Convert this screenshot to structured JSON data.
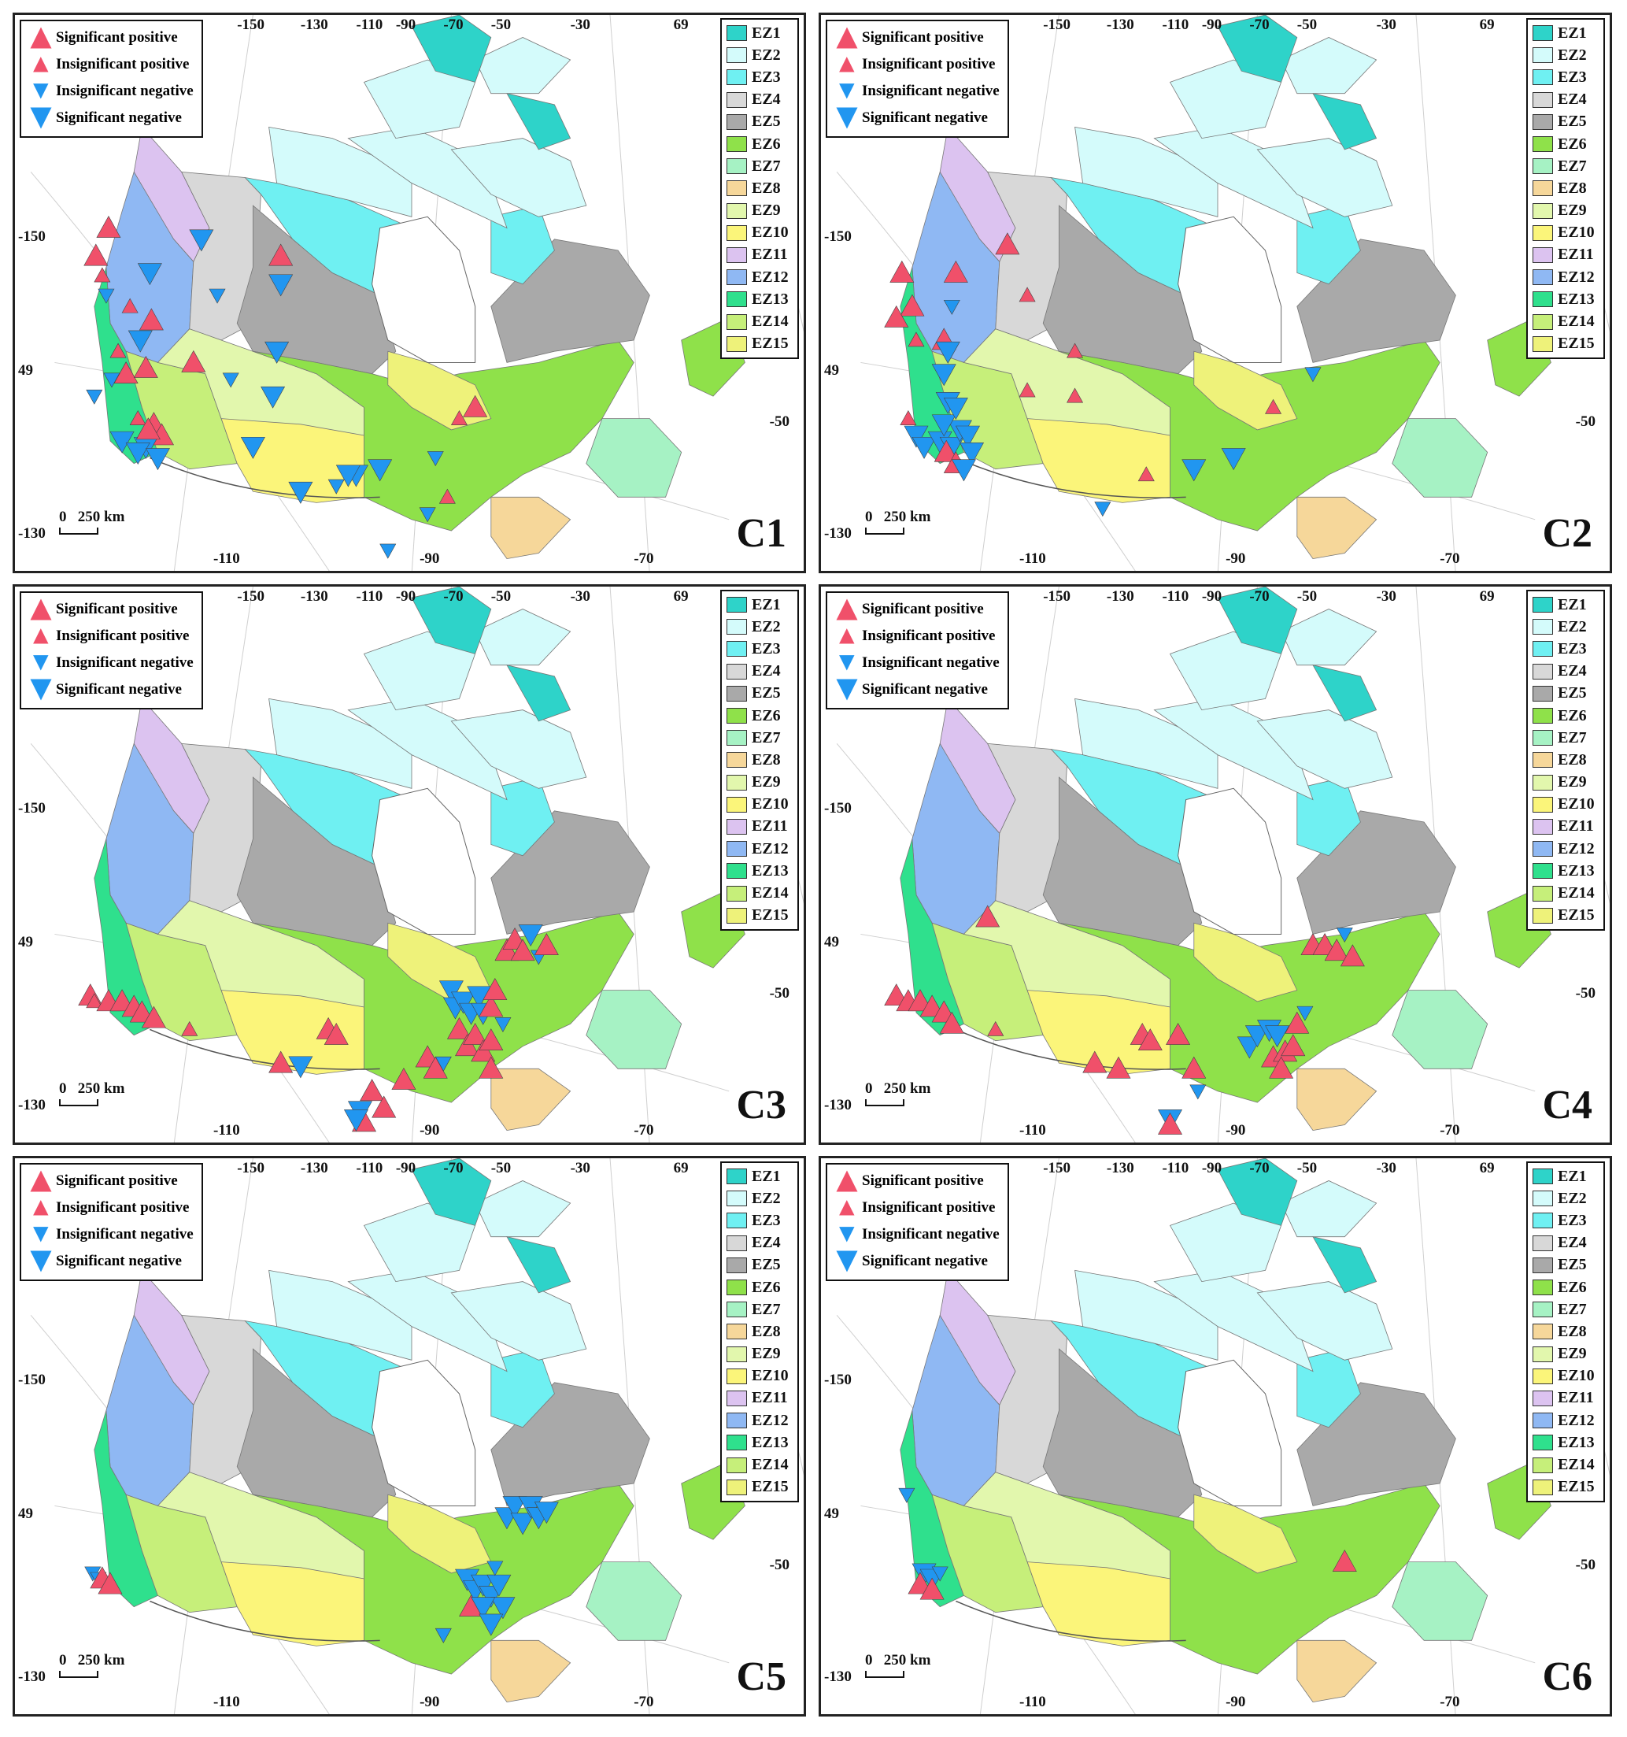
{
  "legend_trend": [
    {
      "kind": "sig-pos",
      "label": "Significant positive"
    },
    {
      "kind": "ins-pos",
      "label": "Insignificant positive"
    },
    {
      "kind": "ins-neg",
      "label": "Insignificant negative"
    },
    {
      "kind": "sig-neg",
      "label": "Significant negative"
    }
  ],
  "ecozones": [
    {
      "label": "EZ1",
      "color": "#2ed3c9"
    },
    {
      "label": "EZ2",
      "color": "#d4fbfb"
    },
    {
      "label": "EZ3",
      "color": "#6ff0f2"
    },
    {
      "label": "EZ4",
      "color": "#d8d8d8"
    },
    {
      "label": "EZ5",
      "color": "#a9a9a9"
    },
    {
      "label": "EZ6",
      "color": "#8fe14a"
    },
    {
      "label": "EZ7",
      "color": "#a6f2c4"
    },
    {
      "label": "EZ8",
      "color": "#f6d79a"
    },
    {
      "label": "EZ9",
      "color": "#e2f7ad"
    },
    {
      "label": "EZ10",
      "color": "#fbf57a"
    },
    {
      "label": "EZ11",
      "color": "#dcc3f0"
    },
    {
      "label": "EZ12",
      "color": "#8fb8f3"
    },
    {
      "label": "EZ13",
      "color": "#2fe08d"
    },
    {
      "label": "EZ14",
      "color": "#c6ef7a"
    },
    {
      "label": "EZ15",
      "color": "#eef27a"
    }
  ],
  "colors": {
    "positive": "#f0506a",
    "negative": "#2196f0"
  },
  "coord_labels": {
    "top": [
      "-150",
      "-130",
      "-110",
      "-90",
      "-70",
      "-50",
      "-30",
      "69"
    ],
    "left": [
      "-150",
      "49",
      "-130"
    ],
    "right": [
      "-50"
    ],
    "bottom": [
      "-110",
      "-90",
      "-70"
    ]
  },
  "scale_label": "0   250 km",
  "panels": [
    {
      "label": "C1",
      "stations": [
        [
          "sp",
          0.118,
          0.38
        ],
        [
          "sp",
          0.102,
          0.43
        ],
        [
          "ip",
          0.11,
          0.465
        ],
        [
          "in",
          0.115,
          0.5
        ],
        [
          "sn",
          0.17,
          0.46
        ],
        [
          "ip",
          0.145,
          0.52
        ],
        [
          "sp",
          0.172,
          0.545
        ],
        [
          "sn",
          0.158,
          0.58
        ],
        [
          "ip",
          0.13,
          0.6
        ],
        [
          "sp",
          0.14,
          0.64
        ],
        [
          "sp",
          0.165,
          0.63
        ],
        [
          "sp",
          0.225,
          0.62
        ],
        [
          "in",
          0.122,
          0.65
        ],
        [
          "in",
          0.1,
          0.68
        ],
        [
          "ip",
          0.155,
          0.72
        ],
        [
          "sp",
          0.175,
          0.73
        ],
        [
          "sp",
          0.185,
          0.75
        ],
        [
          "sn",
          0.135,
          0.76
        ],
        [
          "sn",
          0.165,
          0.77
        ],
        [
          "sn",
          0.155,
          0.78
        ],
        [
          "sn",
          0.18,
          0.79
        ],
        [
          "sp",
          0.168,
          0.74
        ],
        [
          "sn",
          0.235,
          0.4
        ],
        [
          "in",
          0.255,
          0.5
        ],
        [
          "sp",
          0.335,
          0.43
        ],
        [
          "sn",
          0.335,
          0.48
        ],
        [
          "sn",
          0.33,
          0.6
        ],
        [
          "sn",
          0.325,
          0.68
        ],
        [
          "in",
          0.272,
          0.65
        ],
        [
          "sn",
          0.3,
          0.77
        ],
        [
          "sn",
          0.36,
          0.85
        ],
        [
          "in",
          0.405,
          0.84
        ],
        [
          "sn",
          0.43,
          0.82
        ],
        [
          "sn",
          0.46,
          0.81
        ],
        [
          "in",
          0.53,
          0.79
        ],
        [
          "sp",
          0.58,
          0.7
        ],
        [
          "ip",
          0.56,
          0.72
        ],
        [
          "in",
          0.52,
          0.89
        ],
        [
          "ip",
          0.545,
          0.86
        ],
        [
          "in",
          0.47,
          0.955
        ],
        [
          "sn",
          0.42,
          0.82
        ]
      ]
    },
    {
      "label": "C2",
      "stations": [
        [
          "sp",
          0.102,
          0.46
        ],
        [
          "sp",
          0.115,
          0.52
        ],
        [
          "sp",
          0.095,
          0.54
        ],
        [
          "sp",
          0.17,
          0.46
        ],
        [
          "in",
          0.165,
          0.52
        ],
        [
          "sp",
          0.155,
          0.58
        ],
        [
          "ip",
          0.12,
          0.58
        ],
        [
          "sn",
          0.16,
          0.6
        ],
        [
          "sn",
          0.155,
          0.64
        ],
        [
          "sn",
          0.16,
          0.69
        ],
        [
          "ip",
          0.11,
          0.72
        ],
        [
          "sn",
          0.12,
          0.75
        ],
        [
          "sn",
          0.13,
          0.77
        ],
        [
          "sn",
          0.15,
          0.76
        ],
        [
          "sn",
          0.165,
          0.77
        ],
        [
          "sn",
          0.175,
          0.74
        ],
        [
          "sn",
          0.185,
          0.75
        ],
        [
          "sn",
          0.19,
          0.78
        ],
        [
          "sp",
          0.158,
          0.78
        ],
        [
          "sp",
          0.17,
          0.8
        ],
        [
          "sn",
          0.18,
          0.81
        ],
        [
          "sn",
          0.155,
          0.73
        ],
        [
          "sn",
          0.17,
          0.7
        ],
        [
          "sp",
          0.235,
          0.41
        ],
        [
          "ip",
          0.26,
          0.5
        ],
        [
          "ip",
          0.32,
          0.6
        ],
        [
          "ip",
          0.26,
          0.67
        ],
        [
          "ip",
          0.32,
          0.68
        ],
        [
          "ip",
          0.41,
          0.82
        ],
        [
          "in",
          0.355,
          0.88
        ],
        [
          "sn",
          0.47,
          0.81
        ],
        [
          "sn",
          0.52,
          0.79
        ],
        [
          "ip",
          0.57,
          0.7
        ],
        [
          "in",
          0.62,
          0.64
        ]
      ]
    },
    {
      "label": "C3",
      "stations": [
        [
          "sp",
          0.095,
          0.73
        ],
        [
          "ip",
          0.1,
          0.74
        ],
        [
          "sp",
          0.118,
          0.74
        ],
        [
          "sp",
          0.135,
          0.74
        ],
        [
          "sp",
          0.15,
          0.75
        ],
        [
          "sp",
          0.16,
          0.76
        ],
        [
          "sp",
          0.175,
          0.77
        ],
        [
          "ip",
          0.22,
          0.79
        ],
        [
          "sp",
          0.335,
          0.85
        ],
        [
          "sn",
          0.36,
          0.855
        ],
        [
          "sp",
          0.395,
          0.79
        ],
        [
          "sp",
          0.405,
          0.8
        ],
        [
          "sp",
          0.45,
          0.9
        ],
        [
          "sp",
          0.465,
          0.93
        ],
        [
          "sn",
          0.435,
          0.935
        ],
        [
          "sp",
          0.44,
          0.955
        ],
        [
          "sn",
          0.43,
          0.95
        ],
        [
          "sp",
          0.49,
          0.88
        ],
        [
          "sp",
          0.52,
          0.84
        ],
        [
          "sp",
          0.53,
          0.86
        ],
        [
          "sn",
          0.55,
          0.72
        ],
        [
          "sn",
          0.555,
          0.75
        ],
        [
          "sn",
          0.565,
          0.74
        ],
        [
          "sn",
          0.575,
          0.76
        ],
        [
          "sn",
          0.585,
          0.73
        ],
        [
          "sn",
          0.59,
          0.76
        ],
        [
          "sp",
          0.6,
          0.75
        ],
        [
          "sp",
          0.56,
          0.79
        ],
        [
          "sp",
          0.57,
          0.82
        ],
        [
          "sp",
          0.58,
          0.8
        ],
        [
          "sp",
          0.59,
          0.83
        ],
        [
          "sp",
          0.6,
          0.81
        ],
        [
          "sp",
          0.605,
          0.72
        ],
        [
          "in",
          0.615,
          0.78
        ],
        [
          "in",
          0.54,
          0.85
        ],
        [
          "sp",
          0.6,
          0.86
        ],
        [
          "sp",
          0.62,
          0.65
        ],
        [
          "sp",
          0.63,
          0.63
        ],
        [
          "sp",
          0.64,
          0.65
        ],
        [
          "sn",
          0.65,
          0.62
        ],
        [
          "in",
          0.66,
          0.66
        ],
        [
          "sp",
          0.67,
          0.64
        ]
      ]
    },
    {
      "label": "C4",
      "stations": [
        [
          "sp",
          0.21,
          0.59
        ],
        [
          "sp",
          0.095,
          0.73
        ],
        [
          "sp",
          0.11,
          0.74
        ],
        [
          "sp",
          0.125,
          0.74
        ],
        [
          "sp",
          0.14,
          0.75
        ],
        [
          "sp",
          0.155,
          0.76
        ],
        [
          "sp",
          0.165,
          0.78
        ],
        [
          "ip",
          0.22,
          0.79
        ],
        [
          "sp",
          0.345,
          0.85
        ],
        [
          "sp",
          0.375,
          0.86
        ],
        [
          "sp",
          0.405,
          0.8
        ],
        [
          "sp",
          0.415,
          0.81
        ],
        [
          "sp",
          0.45,
          0.8
        ],
        [
          "sp",
          0.47,
          0.86
        ],
        [
          "in",
          0.475,
          0.9
        ],
        [
          "sn",
          0.44,
          0.95
        ],
        [
          "sp",
          0.44,
          0.96
        ],
        [
          "sn",
          0.54,
          0.82
        ],
        [
          "sn",
          0.55,
          0.8
        ],
        [
          "sn",
          0.565,
          0.79
        ],
        [
          "sn",
          0.575,
          0.8
        ],
        [
          "sp",
          0.57,
          0.84
        ],
        [
          "sp",
          0.585,
          0.83
        ],
        [
          "sp",
          0.595,
          0.82
        ],
        [
          "sp",
          0.6,
          0.78
        ],
        [
          "in",
          0.61,
          0.76
        ],
        [
          "sp",
          0.58,
          0.86
        ],
        [
          "sp",
          0.62,
          0.64
        ],
        [
          "sp",
          0.635,
          0.64
        ],
        [
          "sp",
          0.65,
          0.65
        ],
        [
          "in",
          0.66,
          0.62
        ],
        [
          "sp",
          0.67,
          0.66
        ]
      ]
    },
    {
      "label": "C5",
      "stations": [
        [
          "in",
          0.098,
          0.74
        ],
        [
          "in",
          0.105,
          0.75
        ],
        [
          "sp",
          0.11,
          0.75
        ],
        [
          "sp",
          0.12,
          0.76
        ],
        [
          "sn",
          0.57,
          0.75
        ],
        [
          "sn",
          0.58,
          0.77
        ],
        [
          "sn",
          0.59,
          0.76
        ],
        [
          "sn",
          0.6,
          0.78
        ],
        [
          "sn",
          0.61,
          0.76
        ],
        [
          "sn",
          0.615,
          0.8
        ],
        [
          "sp",
          0.575,
          0.8
        ],
        [
          "sn",
          0.59,
          0.8
        ],
        [
          "sn",
          0.6,
          0.83
        ],
        [
          "in",
          0.605,
          0.73
        ],
        [
          "in",
          0.54,
          0.85
        ],
        [
          "sn",
          0.62,
          0.64
        ],
        [
          "sn",
          0.63,
          0.62
        ],
        [
          "sn",
          0.64,
          0.65
        ],
        [
          "sn",
          0.65,
          0.62
        ],
        [
          "sn",
          0.66,
          0.64
        ],
        [
          "sn",
          0.67,
          0.63
        ]
      ]
    },
    {
      "label": "C6",
      "stations": [
        [
          "in",
          0.108,
          0.6
        ],
        [
          "sn",
          0.13,
          0.74
        ],
        [
          "sn",
          0.14,
          0.75
        ],
        [
          "sp",
          0.125,
          0.76
        ],
        [
          "sp",
          0.14,
          0.77
        ],
        [
          "in",
          0.15,
          0.74
        ],
        [
          "sp",
          0.66,
          0.72
        ]
      ]
    }
  ]
}
